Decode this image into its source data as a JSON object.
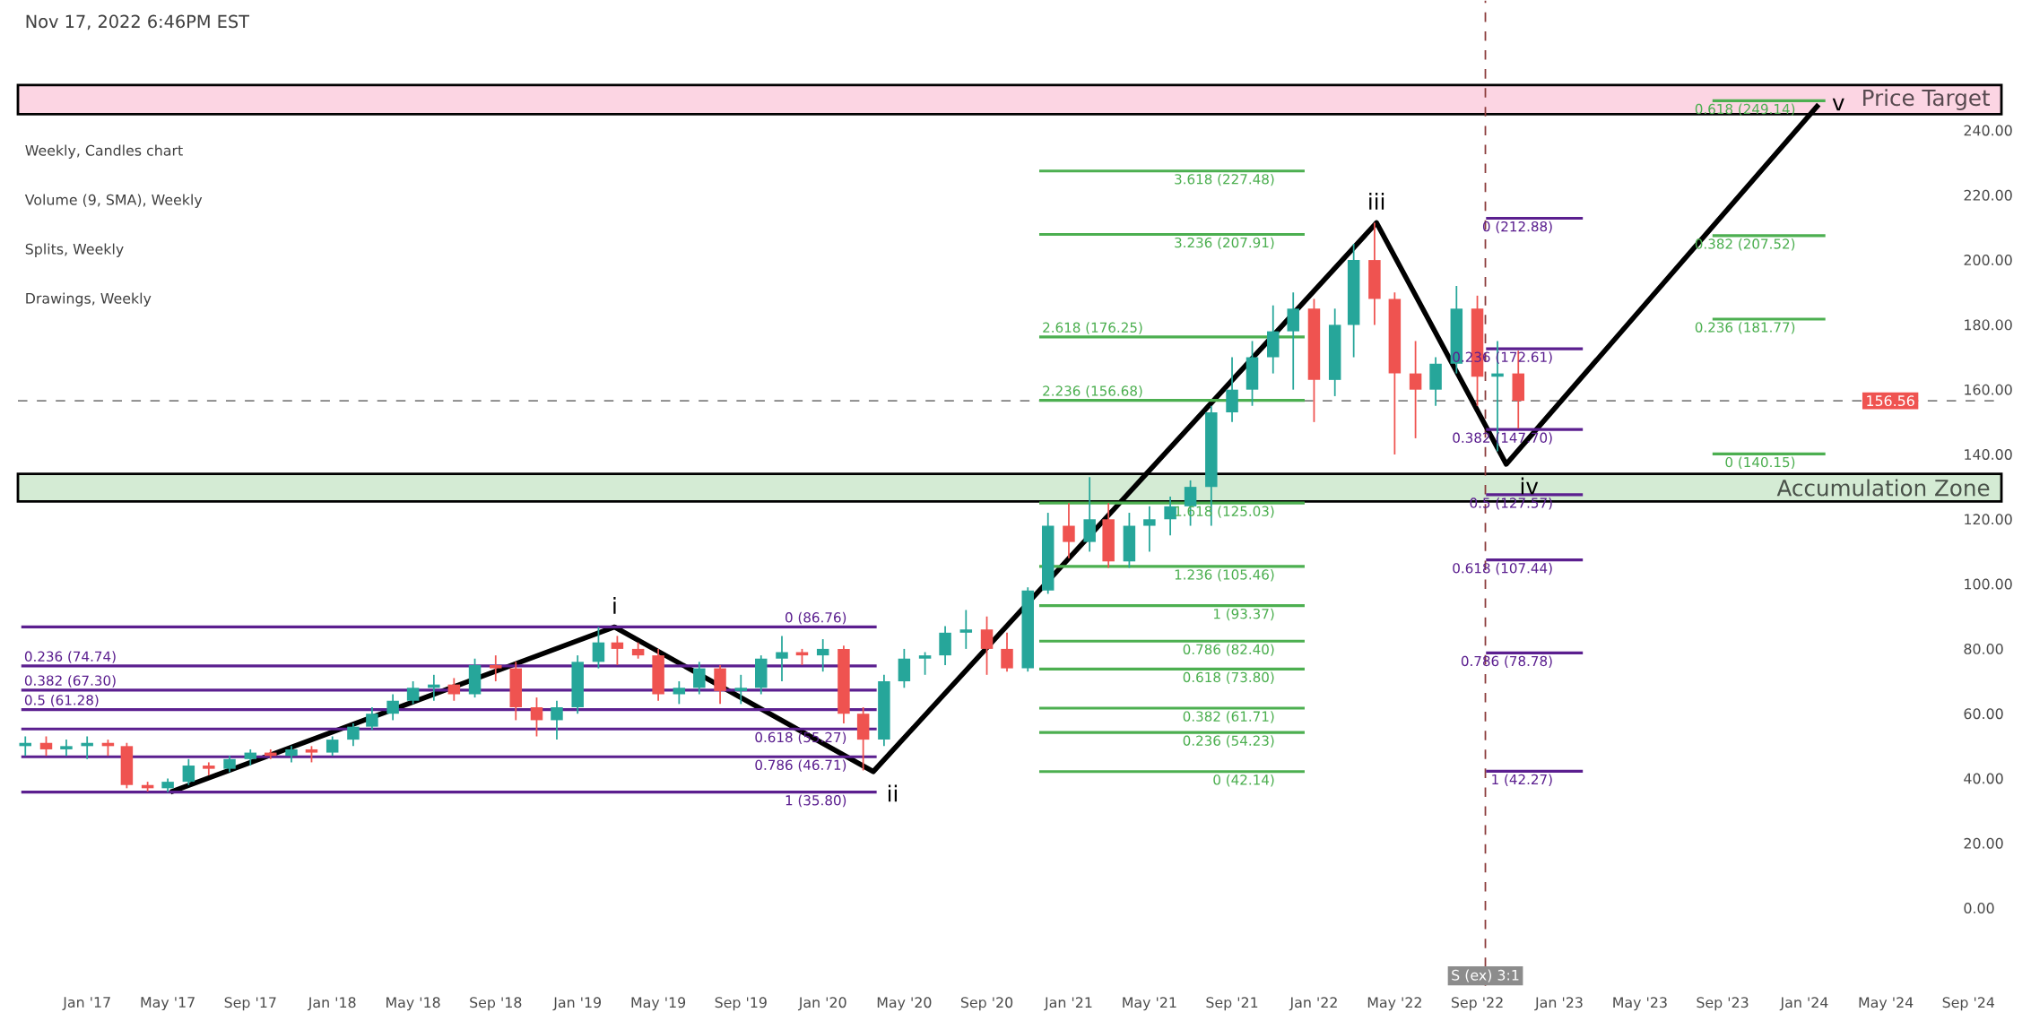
{
  "chart_data": {
    "type": "candlestick",
    "x": [
      "2016-10",
      "2016-11",
      "2016-12",
      "2017-01",
      "2017-02",
      "2017-03",
      "2017-04",
      "2017-05",
      "2017-06",
      "2017-07",
      "2017-08",
      "2017-09",
      "2017-10",
      "2017-11",
      "2017-12",
      "2018-01",
      "2018-02",
      "2018-03",
      "2018-04",
      "2018-05",
      "2018-06",
      "2018-07",
      "2018-08",
      "2018-09",
      "2018-10",
      "2018-11",
      "2018-12",
      "2019-01",
      "2019-02",
      "2019-03",
      "2019-04",
      "2019-05",
      "2019-06",
      "2019-07",
      "2019-08",
      "2019-09",
      "2019-10",
      "2019-11",
      "2019-12",
      "2020-01",
      "2020-02",
      "2020-03",
      "2020-04",
      "2020-05",
      "2020-06",
      "2020-07",
      "2020-08",
      "2020-09",
      "2020-10",
      "2020-11",
      "2020-12",
      "2021-01",
      "2021-02",
      "2021-03",
      "2021-04",
      "2021-05",
      "2021-06",
      "2021-07",
      "2021-08",
      "2021-09",
      "2021-10",
      "2021-11",
      "2021-12",
      "2022-01",
      "2022-02",
      "2022-03",
      "2022-04",
      "2022-05",
      "2022-06",
      "2022-07",
      "2022-08",
      "2022-09",
      "2022-10",
      "2022-11"
    ],
    "ohlc": [
      [
        50,
        53,
        47,
        51
      ],
      [
        51,
        53,
        47,
        49
      ],
      [
        49,
        52,
        47,
        50
      ],
      [
        50,
        53,
        46,
        51
      ],
      [
        51,
        52,
        47,
        50
      ],
      [
        50,
        51,
        37,
        38
      ],
      [
        38,
        39,
        36,
        37
      ],
      [
        37,
        40,
        35.8,
        39
      ],
      [
        39,
        46,
        38,
        44
      ],
      [
        44,
        45,
        41,
        43
      ],
      [
        43,
        47,
        42,
        46
      ],
      [
        46,
        49,
        44,
        48
      ],
      [
        48,
        49,
        46,
        47
      ],
      [
        47,
        50,
        45,
        49
      ],
      [
        49,
        50,
        45,
        48
      ],
      [
        48,
        53,
        47,
        52
      ],
      [
        52,
        57,
        50,
        56
      ],
      [
        56,
        62,
        55,
        60
      ],
      [
        60,
        66,
        58,
        64
      ],
      [
        64,
        70,
        63,
        68
      ],
      [
        68,
        72,
        64,
        69
      ],
      [
        69,
        71,
        64,
        66
      ],
      [
        66,
        77,
        65,
        75
      ],
      [
        75,
        78,
        70,
        74
      ],
      [
        74,
        76,
        58,
        62
      ],
      [
        62,
        65,
        53,
        58
      ],
      [
        58,
        64,
        52,
        62
      ],
      [
        62,
        78,
        60,
        76
      ],
      [
        76,
        86.76,
        74,
        82
      ],
      [
        82,
        84,
        75,
        80
      ],
      [
        80,
        82,
        77,
        78
      ],
      [
        78,
        80,
        64,
        66
      ],
      [
        66,
        70,
        63,
        68
      ],
      [
        68,
        76,
        66,
        74
      ],
      [
        74,
        75,
        63,
        67
      ],
      [
        67,
        72,
        63,
        68
      ],
      [
        68,
        78,
        66,
        77
      ],
      [
        77,
        84,
        70,
        79
      ],
      [
        79,
        80,
        75,
        78
      ],
      [
        78,
        83,
        73,
        80
      ],
      [
        80,
        81,
        57,
        60
      ],
      [
        60,
        62,
        42.5,
        52
      ],
      [
        52,
        72,
        50,
        70
      ],
      [
        70,
        80,
        68,
        77
      ],
      [
        77,
        79,
        72,
        78
      ],
      [
        78,
        87,
        75,
        85
      ],
      [
        85,
        92,
        80,
        86
      ],
      [
        86,
        90,
        72,
        80
      ],
      [
        80,
        85,
        73,
        74
      ],
      [
        74,
        99,
        73,
        98
      ],
      [
        98,
        122,
        97,
        118
      ],
      [
        118,
        125,
        108,
        113
      ],
      [
        113,
        133,
        110,
        120
      ],
      [
        120,
        125,
        105,
        107
      ],
      [
        107,
        122,
        105,
        118
      ],
      [
        118,
        124,
        110,
        120
      ],
      [
        120,
        127,
        115,
        124
      ],
      [
        124,
        132,
        118,
        130
      ],
      [
        130,
        155,
        118,
        153
      ],
      [
        153,
        170,
        150,
        160
      ],
      [
        160,
        175,
        155,
        170
      ],
      [
        170,
        186,
        165,
        178
      ],
      [
        178,
        190,
        160,
        185
      ],
      [
        185,
        188,
        150,
        163
      ],
      [
        163,
        185,
        158,
        180
      ],
      [
        180,
        205,
        170,
        200
      ],
      [
        200,
        211.5,
        180,
        188
      ],
      [
        188,
        190,
        140,
        165
      ],
      [
        165,
        175,
        145,
        160
      ],
      [
        160,
        170,
        155,
        168
      ],
      [
        168,
        192,
        165,
        185
      ],
      [
        185,
        189,
        155,
        164
      ],
      [
        164,
        175,
        141,
        165
      ],
      [
        165,
        172,
        148,
        156.56
      ]
    ],
    "series": [
      {
        "type": "line",
        "color": "#000000",
        "x": [
          "2017-05-05",
          "2019-02-25",
          "2020-03-16",
          "2022-04-04",
          "2022-10-14",
          "2024-01-22"
        ],
        "values": [
          35.8,
          86.76,
          42.14,
          211.5,
          137,
          248
        ]
      },
      {
        "type": "line",
        "name": "0 (86.76)",
        "color": "#5b1f8f",
        "x": [
          "2016-09-25",
          "2020-03-21"
        ],
        "values": [
          86.76,
          86.76
        ]
      },
      {
        "type": "line",
        "name": "0.236 (74.74)",
        "color": "#5b1f8f",
        "x": [
          "2016-09-25",
          "2020-03-21"
        ],
        "values": [
          74.74,
          74.74
        ]
      },
      {
        "type": "line",
        "name": "0.382 (67.30)",
        "color": "#5b1f8f",
        "x": [
          "2016-09-25",
          "2020-03-21"
        ],
        "values": [
          67.3,
          67.3
        ]
      },
      {
        "type": "line",
        "name": "0.5 (61.28)",
        "color": "#5b1f8f",
        "x": [
          "2016-09-25",
          "2020-03-21"
        ],
        "values": [
          61.28,
          61.28
        ]
      },
      {
        "type": "line",
        "name": "0.618 (55.27)",
        "color": "#5b1f8f",
        "x": [
          "2016-09-25",
          "2020-03-21"
        ],
        "values": [
          55.27,
          55.27
        ]
      },
      {
        "type": "line",
        "name": "0.786 (46.71)",
        "color": "#5b1f8f",
        "x": [
          "2016-09-25",
          "2020-03-21"
        ],
        "values": [
          46.71,
          46.71
        ]
      },
      {
        "type": "line",
        "name": "1 (35.80)",
        "color": "#5b1f8f",
        "x": [
          "2016-09-25",
          "2020-03-21"
        ],
        "values": [
          35.8,
          35.8
        ]
      },
      {
        "type": "line",
        "name": "3.618 (227.48)",
        "color": "#4caf50",
        "x": [
          "2020-11-18",
          "2021-12-18"
        ],
        "values": [
          227.48,
          227.48
        ]
      },
      {
        "type": "line",
        "name": "3.236 (207.91)",
        "color": "#4caf50",
        "x": [
          "2020-11-18",
          "2021-12-18"
        ],
        "values": [
          207.91,
          207.91
        ]
      },
      {
        "type": "line",
        "name": "2.618 (176.25)",
        "color": "#4caf50",
        "x": [
          "2020-11-18",
          "2021-12-18"
        ],
        "values": [
          176.25,
          176.25
        ]
      },
      {
        "type": "line",
        "name": "2.236 (156.68)",
        "color": "#4caf50",
        "x": [
          "2020-11-18",
          "2021-12-18"
        ],
        "values": [
          156.68,
          156.68
        ]
      },
      {
        "type": "line",
        "name": "1.618 (125.03)",
        "color": "#4caf50",
        "x": [
          "2020-11-18",
          "2021-12-18"
        ],
        "values": [
          125.03,
          125.03
        ]
      },
      {
        "type": "line",
        "name": "1.236 (105.46)",
        "color": "#4caf50",
        "x": [
          "2020-11-18",
          "2021-12-18"
        ],
        "values": [
          105.46,
          105.46
        ]
      },
      {
        "type": "line",
        "name": "1 (93.37)",
        "color": "#4caf50",
        "x": [
          "2020-11-18",
          "2021-12-18"
        ],
        "values": [
          93.37,
          93.37
        ]
      },
      {
        "type": "line",
        "name": "0.786 (82.40)",
        "color": "#4caf50",
        "x": [
          "2020-11-18",
          "2021-12-18"
        ],
        "values": [
          82.4,
          82.4
        ]
      },
      {
        "type": "line",
        "name": "0.618 (73.80)",
        "color": "#4caf50",
        "x": [
          "2020-11-18",
          "2021-12-18"
        ],
        "values": [
          73.8,
          73.8
        ]
      },
      {
        "type": "line",
        "name": "0.382 (61.71)",
        "color": "#4caf50",
        "x": [
          "2020-11-18",
          "2021-12-18"
        ],
        "values": [
          61.71,
          61.71
        ]
      },
      {
        "type": "line",
        "name": "0.236 (54.23)",
        "color": "#4caf50",
        "x": [
          "2020-11-18",
          "2021-12-18"
        ],
        "values": [
          54.23,
          54.23
        ]
      },
      {
        "type": "line",
        "name": "0 (42.14)",
        "color": "#4caf50",
        "x": [
          "2020-11-18",
          "2021-12-18"
        ],
        "values": [
          42.14,
          42.14
        ]
      },
      {
        "type": "line",
        "name": "0 (212.88)",
        "color": "#5b1f8f",
        "x": [
          "2022-09-14",
          "2023-02-05"
        ],
        "values": [
          212.88,
          212.88
        ]
      },
      {
        "type": "line",
        "name": "0.236 (172.61)",
        "color": "#5b1f8f",
        "x": [
          "2022-09-14",
          "2023-02-05"
        ],
        "values": [
          172.61,
          172.61
        ]
      },
      {
        "type": "line",
        "name": "0.382 (147.70)",
        "color": "#5b1f8f",
        "x": [
          "2022-09-14",
          "2023-02-05"
        ],
        "values": [
          147.7,
          147.7
        ]
      },
      {
        "type": "line",
        "name": "0.5 (127.57)",
        "color": "#5b1f8f",
        "x": [
          "2022-09-14",
          "2023-02-05"
        ],
        "values": [
          127.57,
          127.57
        ]
      },
      {
        "type": "line",
        "name": "0.618 (107.44)",
        "color": "#5b1f8f",
        "x": [
          "2022-09-14",
          "2023-02-05"
        ],
        "values": [
          107.44,
          107.44
        ]
      },
      {
        "type": "line",
        "name": "0.786 (78.78)",
        "color": "#5b1f8f",
        "x": [
          "2022-09-14",
          "2023-02-05"
        ],
        "values": [
          78.78,
          78.78
        ]
      },
      {
        "type": "line",
        "name": "1 (42.27)",
        "color": "#5b1f8f",
        "x": [
          "2022-09-14",
          "2023-02-05"
        ],
        "values": [
          42.27,
          42.27
        ]
      },
      {
        "type": "line",
        "name": "0.618 (249.14)",
        "color": "#4caf50",
        "x": [
          "2023-08-17",
          "2024-02-01"
        ],
        "values": [
          249.14,
          249.14
        ]
      },
      {
        "type": "line",
        "name": "0.382 (207.52)",
        "color": "#4caf50",
        "x": [
          "2023-08-17",
          "2024-02-01"
        ],
        "values": [
          207.52,
          207.52
        ]
      },
      {
        "type": "line",
        "name": "0.236 (181.77)",
        "color": "#4caf50",
        "x": [
          "2023-08-17",
          "2024-02-01"
        ],
        "values": [
          181.77,
          181.77
        ]
      },
      {
        "type": "line",
        "name": "0 (140.15)",
        "color": "#4caf50",
        "x": [
          "2023-08-17",
          "2024-02-01"
        ],
        "values": [
          140.15,
          140.15
        ]
      }
    ],
    "bands": [
      {
        "axis": "y",
        "from": 245,
        "to": 254,
        "label": "Price Target",
        "color": "#fcd5e3"
      },
      {
        "axis": "y",
        "from": 125.5,
        "to": 134,
        "label": "Accumulation Zone",
        "color": "#d4ebd4"
      }
    ],
    "ref_lines": [
      {
        "axis": "y",
        "value": 156.56,
        "label": "156.56",
        "color": "#808080"
      },
      {
        "axis": "x",
        "value": "2022-09-13",
        "label": "S (ex) 3:1",
        "color": "#8b3a3a"
      }
    ],
    "annotations": [
      "Nov 17, 2022 6:46PM EST",
      "Weekly, Candles chart",
      "Volume (9, SMA), Weekly",
      "Splits, Weekly",
      "Drawings, Weekly",
      {
        "text": "i",
        "x": "2019-02-25",
        "y": 86.76
      },
      {
        "text": "ii",
        "x": "2020-03-16",
        "y": 42.14
      },
      {
        "text": "iii",
        "x": "2022-04-04",
        "y": 211.5
      },
      {
        "text": "iv",
        "x": "2022-10-14",
        "y": 137
      },
      {
        "text": "v",
        "x": "2024-01-22",
        "y": 248
      }
    ],
    "xlim": [
      "2016-09-20",
      "2024-10-20"
    ],
    "xticks": [
      {
        "value": "2017-01-01",
        "label": "Jan '17"
      },
      {
        "value": "2017-05-01",
        "label": "May '17"
      },
      {
        "value": "2017-09-01",
        "label": "Sep '17"
      },
      {
        "value": "2018-01-01",
        "label": "Jan '18"
      },
      {
        "value": "2018-05-01",
        "label": "May '18"
      },
      {
        "value": "2018-09-01",
        "label": "Sep '18"
      },
      {
        "value": "2019-01-01",
        "label": "Jan '19"
      },
      {
        "value": "2019-05-01",
        "label": "May '19"
      },
      {
        "value": "2019-09-01",
        "label": "Sep '19"
      },
      {
        "value": "2020-01-01",
        "label": "Jan '20"
      },
      {
        "value": "2020-05-01",
        "label": "May '20"
      },
      {
        "value": "2020-09-01",
        "label": "Sep '20"
      },
      {
        "value": "2021-01-01",
        "label": "Jan '21"
      },
      {
        "value": "2021-05-01",
        "label": "May '21"
      },
      {
        "value": "2021-09-01",
        "label": "Sep '21"
      },
      {
        "value": "2022-01-01",
        "label": "Jan '22"
      },
      {
        "value": "2022-05-01",
        "label": "May '22"
      },
      {
        "value": "2022-09-01",
        "label": "Sep '22"
      },
      {
        "value": "2023-01-01",
        "label": "Jan '23"
      },
      {
        "value": "2023-05-01",
        "label": "May '23"
      },
      {
        "value": "2023-09-01",
        "label": "Sep '23"
      },
      {
        "value": "2024-01-01",
        "label": "Jan '24"
      },
      {
        "value": "2024-05-01",
        "label": "May '24"
      },
      {
        "value": "2024-09-01",
        "label": "Sep '24"
      }
    ],
    "ylim": [
      -24,
      280
    ],
    "yticks": [
      {
        "value": 0,
        "label": "0.00"
      },
      {
        "value": 20,
        "label": "20.00"
      },
      {
        "value": 40,
        "label": "40.00"
      },
      {
        "value": 60,
        "label": "60.00"
      },
      {
        "value": 80,
        "label": "80.00"
      },
      {
        "value": 100,
        "label": "100.00"
      },
      {
        "value": 120,
        "label": "120.00"
      },
      {
        "value": 140,
        "label": "140.00"
      },
      {
        "value": 160,
        "label": "160.00"
      },
      {
        "value": 180,
        "label": "180.00"
      },
      {
        "value": 200,
        "label": "200.00"
      },
      {
        "value": 220,
        "label": "220.00"
      },
      {
        "value": 240,
        "label": "240.00"
      }
    ]
  }
}
